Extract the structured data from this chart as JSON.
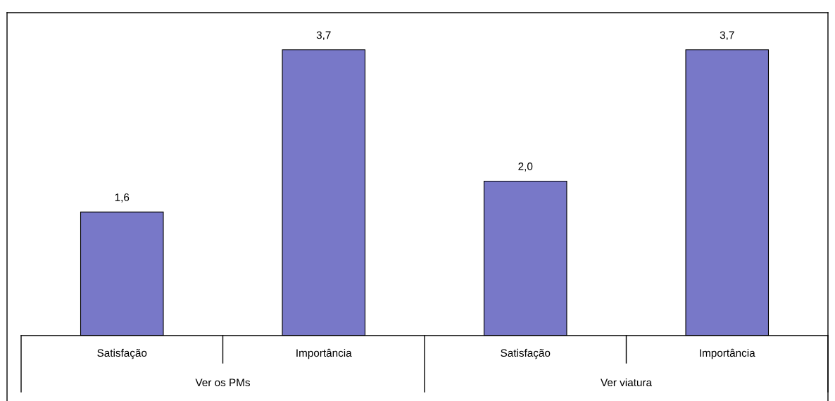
{
  "chart_data": {
    "type": "bar",
    "categories": [
      "Satisfação",
      "Importância",
      "Satisfação",
      "Importância"
    ],
    "values": [
      1.6,
      3.7,
      2.0,
      3.7
    ],
    "value_labels": [
      "1,6",
      "3,7",
      "2,0",
      "3,7"
    ],
    "color": "#7878c8",
    "annotations": [
      "Ver os PMs",
      "Ver viatura"
    ]
  }
}
